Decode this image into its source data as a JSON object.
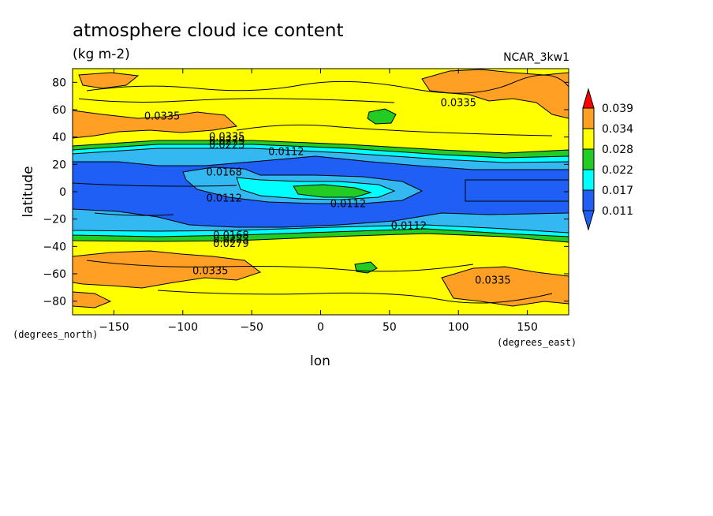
{
  "chart_data": {
    "type": "heatmap",
    "title": "atmosphere cloud ice content",
    "subtitle": "(kg m-2)",
    "model_label": "NCAR_3kw1",
    "xlabel": "lon",
    "ylabel": "latitude",
    "x_units": "(degrees_east)",
    "y_units": "(degrees_north)",
    "xlim": [
      -180,
      180
    ],
    "ylim": [
      -90,
      90
    ],
    "x_ticks": [
      -150,
      -100,
      -50,
      0,
      50,
      100,
      150
    ],
    "y_ticks": [
      -80,
      -60,
      -40,
      -20,
      0,
      20,
      40,
      60,
      80
    ],
    "colorbar": {
      "levels": [
        "0.011",
        "0.017",
        "0.022",
        "0.028",
        "0.034",
        "0.039"
      ],
      "colors": [
        "#1f5ff5",
        "#33b8f2",
        "#00ffff",
        "#22cc22",
        "#ffff00",
        "#ffa024",
        "#ff0000"
      ]
    },
    "contour_labels": [
      {
        "text": "0.0335",
        "lon": -115,
        "lat": 55
      },
      {
        "text": "0.0335",
        "lon": 100,
        "lat": 65
      },
      {
        "text": "0.0335",
        "lon": -68,
        "lat": 40
      },
      {
        "text": "0.0223",
        "lon": -68,
        "lat": 34
      },
      {
        "text": "0.0279",
        "lon": -68,
        "lat": 37
      },
      {
        "text": "0.0112",
        "lon": -25,
        "lat": 29
      },
      {
        "text": "0.0168",
        "lon": -70,
        "lat": 14
      },
      {
        "text": "0.0112",
        "lon": -70,
        "lat": -5
      },
      {
        "text": "0.0112",
        "lon": 20,
        "lat": -9
      },
      {
        "text": "0.0112",
        "lon": 64,
        "lat": -25
      },
      {
        "text": "0.0168",
        "lon": -65,
        "lat": -32
      },
      {
        "text": "0.0223",
        "lon": -65,
        "lat": -35
      },
      {
        "text": "0.0279",
        "lon": -65,
        "lat": -38
      },
      {
        "text": "0.0335",
        "lon": -80,
        "lat": -58
      },
      {
        "text": "0.0335",
        "lon": 125,
        "lat": -65
      }
    ]
  }
}
